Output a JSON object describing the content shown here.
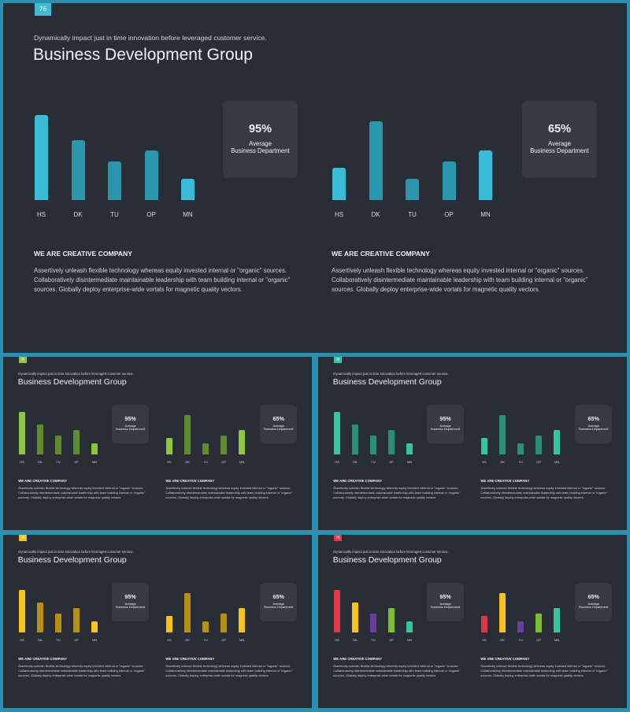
{
  "slides": [
    {
      "page_number": "76",
      "subtitle": "Dynamically impact just in time innovation  before leveraged customer service.",
      "title": "Business Development Group",
      "charts": [
        {
          "stat_value": "95%",
          "stat_label_1": "Average",
          "stat_label_2": "Business Department",
          "section_heading": "WE ARE CREATIVE COMPANY",
          "body": "Assertively unleash flexible technology whereas equity invested internal or \"organic\" sources. Collaboratively disintermediate maintainable leadership with team building internal or \"organic\" sources. Globally deploy enterprise-wide vortals for magnetic quality vectors."
        },
        {
          "stat_value": "65%",
          "stat_label_1": "Average",
          "stat_label_2": "Business Department",
          "section_heading": "WE ARE CREATIVE COMPANY",
          "body": "Assertively unleash flexible technology whereas equity invested internal or \"organic\" sources. Collaboratively disintermediate maintainable leadership with team building internal or \"organic\" sources. Globally deploy enterprise-wide vortals for magnetic quality vectors."
        }
      ]
    },
    {
      "page_number": "76",
      "subtitle": "Dynamically impact just in time innovation  before leveraged customer service.",
      "title": "Business Development Group",
      "charts": [
        {
          "stat_value": "95%",
          "stat_label_1": "Average",
          "stat_label_2": "Business Department",
          "section_heading": "WE ARE CREATIVE COMPANY",
          "body": "Assertively unleash flexible technology whereas equity invested internal or \"organic\" sources. Collaboratively disintermediate maintainable leadership with team building internal or \"organic\" sources. Globally deploy enterprise-wide vortals for magnetic quality vectors."
        },
        {
          "stat_value": "65%",
          "stat_label_1": "Average",
          "stat_label_2": "Business Department",
          "section_heading": "WE ARE CREATIVE COMPANY",
          "body": "Assertively unleash flexible technology whereas equity invested internal or \"organic\" sources. Collaboratively disintermediate maintainable leadership with team building internal or \"organic\" sources. Globally deploy enterprise-wide vortals for magnetic quality vectors."
        }
      ]
    },
    {
      "page_number": "76",
      "subtitle": "Dynamically impact just in time innovation  before leveraged customer service.",
      "title": "Business Development Group",
      "charts": [
        {
          "stat_value": "95%",
          "stat_label_1": "Average",
          "stat_label_2": "Business Department",
          "section_heading": "WE ARE CREATIVE COMPANY",
          "body": "Assertively unleash flexible technology whereas equity invested internal or \"organic\" sources. Collaboratively disintermediate maintainable leadership with team building internal or \"organic\" sources. Globally deploy enterprise-wide vortals for magnetic quality vectors."
        },
        {
          "stat_value": "65%",
          "stat_label_1": "Average",
          "stat_label_2": "Business Department",
          "section_heading": "WE ARE CREATIVE COMPANY",
          "body": "Assertively unleash flexible technology whereas equity invested internal or \"organic\" sources. Collaboratively disintermediate maintainable leadership with team building internal or \"organic\" sources. Globally deploy enterprise-wide vortals for magnetic quality vectors."
        }
      ]
    },
    {
      "page_number": "76",
      "subtitle": "Dynamically impact just in time innovation  before leveraged customer service.",
      "title": "Business Development Group",
      "charts": [
        {
          "stat_value": "95%",
          "stat_label_1": "Average",
          "stat_label_2": "Business Department",
          "section_heading": "WE ARE CREATIVE COMPANY",
          "body": "Assertively unleash flexible technology whereas equity invested internal or \"organic\" sources. Collaboratively disintermediate maintainable leadership with team building internal or \"organic\" sources. Globally deploy enterprise-wide vortals for magnetic quality vectors."
        },
        {
          "stat_value": "65%",
          "stat_label_1": "Average",
          "stat_label_2": "Business Department",
          "section_heading": "WE ARE CREATIVE COMPANY",
          "body": "Assertively unleash flexible technology whereas equity invested internal or \"organic\" sources. Collaboratively disintermediate maintainable leadership with team building internal or \"organic\" sources. Globally deploy enterprise-wide vortals for magnetic quality vectors."
        }
      ]
    },
    {
      "page_number": "76",
      "subtitle": "Dynamically impact just in time innovation  before leveraged customer service.",
      "title": "Business Development Group",
      "charts": [
        {
          "stat_value": "95%",
          "stat_label_1": "Average",
          "stat_label_2": "Business Department",
          "section_heading": "WE ARE CREATIVE COMPANY",
          "body": "Assertively unleash flexible technology whereas equity invested internal or \"organic\" sources. Collaboratively disintermediate maintainable leadership with team building internal or \"organic\" sources. Globally deploy enterprise-wide vortals for magnetic quality vectors."
        },
        {
          "stat_value": "65%",
          "stat_label_1": "Average",
          "stat_label_2": "Business Department",
          "section_heading": "WE ARE CREATIVE COMPANY",
          "body": "Assertively unleash flexible technology whereas equity invested internal or \"organic\" sources. Collaboratively disintermediate maintainable leadership with team building internal or \"organic\" sources. Globally deploy enterprise-wide vortals for magnetic quality vectors."
        }
      ]
    }
  ],
  "chart_data": [
    {
      "type": "bar",
      "categories": [
        "HS",
        "DK",
        "TU",
        "OP",
        "MN"
      ],
      "values": [
        100,
        70,
        45,
        58,
        25
      ],
      "colors": [
        "#3bbcd6",
        "#2a96ad",
        "#2a96ad",
        "#2a96ad",
        "#3bbcd6"
      ]
    },
    {
      "type": "bar",
      "categories": [
        "HS",
        "DK",
        "TU",
        "OP",
        "MN"
      ],
      "values": [
        38,
        93,
        25,
        45,
        58
      ],
      "colors": [
        "#3bbcd6",
        "#2a96ad",
        "#2a96ad",
        "#2a96ad",
        "#3bbcd6"
      ]
    },
    {
      "type": "bar",
      "categories": [
        "HS",
        "DK",
        "TU",
        "OP",
        "MN"
      ],
      "values": [
        100,
        70,
        45,
        58,
        25
      ],
      "colors": [
        "#8cc63f",
        "#5d8c2a",
        "#5d8c2a",
        "#5d8c2a",
        "#8cc63f"
      ]
    },
    {
      "type": "bar",
      "categories": [
        "HS",
        "DK",
        "TU",
        "OP",
        "MN"
      ],
      "values": [
        38,
        93,
        25,
        45,
        58
      ],
      "colors": [
        "#8cc63f",
        "#5d8c2a",
        "#5d8c2a",
        "#5d8c2a",
        "#8cc63f"
      ]
    },
    {
      "type": "bar",
      "categories": [
        "HS",
        "DK",
        "TU",
        "OP",
        "MN"
      ],
      "values": [
        100,
        70,
        45,
        58,
        25
      ],
      "colors": [
        "#37c4a0",
        "#2a8f7a",
        "#2a8f7a",
        "#2a8f7a",
        "#37c4a0"
      ]
    },
    {
      "type": "bar",
      "categories": [
        "HS",
        "DK",
        "TU",
        "OP",
        "MN"
      ],
      "values": [
        38,
        93,
        25,
        45,
        58
      ],
      "colors": [
        "#37c4a0",
        "#2a8f7a",
        "#2a8f7a",
        "#2a8f7a",
        "#37c4a0"
      ]
    },
    {
      "type": "bar",
      "categories": [
        "HS",
        "DK",
        "TU",
        "OP",
        "MN"
      ],
      "values": [
        100,
        70,
        45,
        58,
        25
      ],
      "colors": [
        "#f7c31a",
        "#b8900f",
        "#b8900f",
        "#b8900f",
        "#f7c31a"
      ]
    },
    {
      "type": "bar",
      "categories": [
        "HS",
        "DK",
        "TU",
        "OP",
        "MN"
      ],
      "values": [
        38,
        93,
        25,
        45,
        58
      ],
      "colors": [
        "#f7c31a",
        "#b8900f",
        "#b8900f",
        "#b8900f",
        "#f7c31a"
      ]
    },
    {
      "type": "bar",
      "categories": [
        "HS",
        "DK",
        "TU",
        "OP",
        "MN"
      ],
      "values": [
        100,
        70,
        45,
        58,
        25
      ],
      "colors": [
        "#e0384a",
        "#f7c31a",
        "#6a3d9a",
        "#7bbf2e",
        "#37c4a0"
      ]
    },
    {
      "type": "bar",
      "categories": [
        "HS",
        "DK",
        "TU",
        "OP",
        "MN"
      ],
      "values": [
        38,
        93,
        25,
        45,
        58
      ],
      "colors": [
        "#e0384a",
        "#f7c31a",
        "#6a3d9a",
        "#7bbf2e",
        "#37c4a0"
      ]
    }
  ],
  "badge_colors": [
    "#3bbcd6",
    "#8cc63f",
    "#37c4a0",
    "#f7c31a",
    "#e0384a"
  ]
}
